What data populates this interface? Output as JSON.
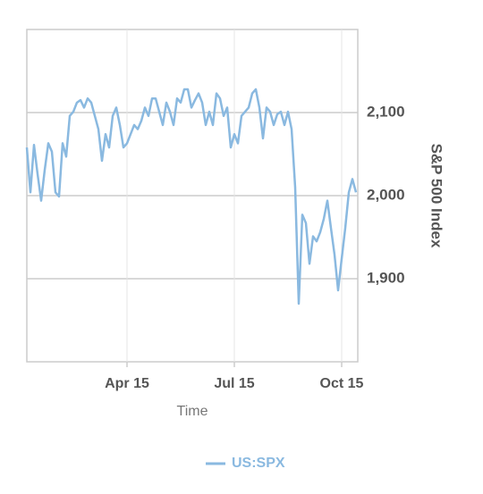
{
  "chart_data": {
    "type": "line",
    "x_label": "Time",
    "y_label": "S&P 500 Index",
    "categories": [
      null,
      null,
      null,
      null,
      null,
      null,
      null,
      null,
      null,
      null,
      null,
      null,
      null,
      null,
      null,
      null,
      null,
      null,
      null,
      null,
      null,
      null,
      null,
      null,
      null,
      null,
      null,
      null,
      "Apr 15",
      null,
      null,
      null,
      null,
      null,
      null,
      null,
      null,
      null,
      null,
      null,
      null,
      null,
      null,
      null,
      null,
      null,
      null,
      null,
      null,
      null,
      null,
      null,
      null,
      null,
      null,
      null,
      null,
      null,
      "Jul 15",
      null,
      null,
      null,
      null,
      null,
      null,
      null,
      null,
      null,
      null,
      null,
      null,
      null,
      null,
      null,
      null,
      null,
      null,
      null,
      null,
      null,
      null,
      null,
      null,
      null,
      null,
      null,
      null,
      null,
      "Oct 15",
      null,
      null,
      null,
      null
    ],
    "series": [
      {
        "name": "US:SPX",
        "color": "#8ab9e0",
        "values": [
          2058,
          2004,
          2061,
          2026,
          1994,
          2031,
          2063,
          2053,
          2004,
          1999,
          2063,
          2047,
          2096,
          2101,
          2112,
          2115,
          2106,
          2117,
          2112,
          2096,
          2080,
          2042,
          2074,
          2058,
          2096,
          2106,
          2085,
          2058,
          2063,
          2074,
          2085,
          2080,
          2090,
          2106,
          2096,
          2117,
          2117,
          2101,
          2085,
          2112,
          2101,
          2085,
          2117,
          2112,
          2128,
          2128,
          2106,
          2115,
          2123,
          2112,
          2085,
          2101,
          2085,
          2123,
          2117,
          2096,
          2106,
          2058,
          2074,
          2063,
          2096,
          2101,
          2106,
          2123,
          2128,
          2106,
          2069,
          2106,
          2101,
          2085,
          2098,
          2101,
          2085,
          2101,
          2080,
          2010,
          1870,
          1977,
          1967,
          1918,
          1951,
          1945,
          1956,
          1972,
          1994,
          1961,
          1929,
          1886,
          1924,
          1961,
          2004,
          2020,
          2004
        ]
      }
    ],
    "ylim": [
      1800,
      2200
    ],
    "yticks": [
      {
        "value": 1900,
        "label": "1,900"
      },
      {
        "value": 2000,
        "label": "2,000"
      },
      {
        "value": 2100,
        "label": "2,100"
      }
    ],
    "grid": true,
    "legend": "bottom"
  }
}
